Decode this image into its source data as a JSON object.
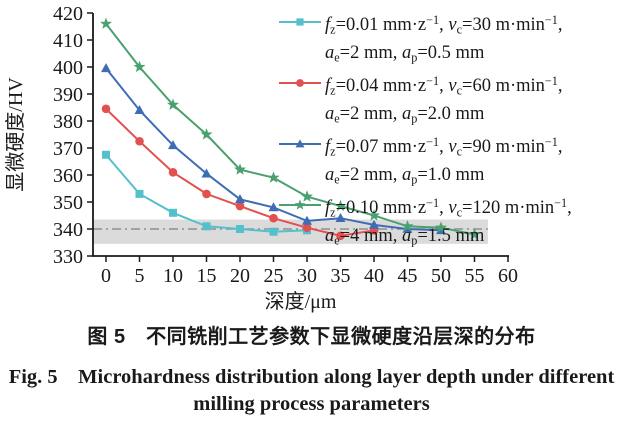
{
  "figure": {
    "caption_cn": "图 5　不同铣削工艺参数下显微硬度沿层深的分布",
    "caption_en1": "Fig. 5　Microhardness distribution along layer depth under different",
    "caption_en2": "milling process parameters"
  },
  "chart_data": {
    "type": "line",
    "title": "",
    "xlabel": "深度/μm",
    "ylabel": "显微硬度/HV",
    "xlim": [
      0,
      60
    ],
    "ylim": [
      330,
      420
    ],
    "x_ticks": [
      0,
      5,
      10,
      15,
      20,
      25,
      30,
      35,
      40,
      45,
      50,
      55,
      60
    ],
    "y_ticks": [
      330,
      340,
      350,
      360,
      370,
      380,
      390,
      400,
      410,
      420
    ],
    "grid": false,
    "legend_position": "top-right",
    "axis_color": "#1a1a1a",
    "reference_band": {
      "ymin": 334.5,
      "ymax": 343.5,
      "x_start": 0,
      "x_end": 57,
      "color": "#dbdbdb"
    },
    "reference_line": {
      "y": 340,
      "x_start": 0,
      "x_end": 57,
      "color": "#8f8f8f",
      "style": "dash-dot"
    },
    "series": [
      {
        "name": "fz=0.01 mm·z−1, vc=30 m·min−1, ae=2 mm, ap=0.5 mm",
        "marker": "square",
        "color": "#54c0cb",
        "x": [
          0,
          5,
          10,
          15,
          20,
          25,
          30
        ],
        "y": [
          367.5,
          353,
          346,
          341,
          340,
          339,
          339.5
        ]
      },
      {
        "name": "fz=0.04 mm·z−1, vc=60 m·min−1, ae=2 mm, ap=2.0 mm",
        "marker": "circle",
        "color": "#e2504f",
        "x": [
          0,
          5,
          10,
          15,
          20,
          25,
          30,
          35,
          40
        ],
        "y": [
          384.5,
          372.5,
          361,
          353,
          348.5,
          344,
          340.5,
          337.5,
          339.5
        ]
      },
      {
        "name": "fz=0.07 mm·z−1, vc=90 m·min−1, ae=2 mm, ap=1.0 mm",
        "marker": "triangle",
        "color": "#3e6db3",
        "x": [
          0,
          5,
          10,
          15,
          20,
          25,
          30,
          35,
          40,
          45,
          50
        ],
        "y": [
          399.5,
          384,
          371,
          360.5,
          351,
          348,
          343,
          344,
          341.5,
          340,
          339.5
        ]
      },
      {
        "name": "fz=0.10 mm·z−1, vc=120 m·min−1, ae=4 mm, ap=1.5 mm",
        "marker": "star",
        "color": "#4aa06e",
        "x": [
          0,
          5,
          10,
          15,
          20,
          25,
          30,
          35,
          40,
          45,
          50,
          55
        ],
        "y": [
          416,
          400,
          386,
          375,
          362,
          359,
          352,
          348.5,
          345,
          341,
          340.5,
          338
        ]
      }
    ],
    "legend": {
      "entries": [
        {
          "marker": "square",
          "color": "#54c0cb",
          "line1": [
            {
              "t": "f",
              "s": "it"
            },
            {
              "t": "z",
              "s": "sub"
            },
            {
              "t": "=0.01 mm·z",
              "s": ""
            },
            {
              "t": "−1",
              "s": "sup"
            },
            {
              "t": ", ",
              "s": ""
            },
            {
              "t": "v",
              "s": "it"
            },
            {
              "t": "c",
              "s": "sub"
            },
            {
              "t": "=30 m·min",
              "s": ""
            },
            {
              "t": "−1",
              "s": "sup"
            },
            {
              "t": ",",
              "s": ""
            }
          ],
          "line2": [
            {
              "t": "a",
              "s": "it"
            },
            {
              "t": "e",
              "s": "sub"
            },
            {
              "t": "=2 mm, ",
              "s": ""
            },
            {
              "t": "a",
              "s": "it"
            },
            {
              "t": "p",
              "s": "sub"
            },
            {
              "t": "=0.5 mm",
              "s": ""
            }
          ]
        },
        {
          "marker": "circle",
          "color": "#e2504f",
          "line1": [
            {
              "t": "f",
              "s": "it"
            },
            {
              "t": "z",
              "s": "sub"
            },
            {
              "t": "=0.04 mm·z",
              "s": ""
            },
            {
              "t": "−1",
              "s": "sup"
            },
            {
              "t": ", ",
              "s": ""
            },
            {
              "t": "v",
              "s": "it"
            },
            {
              "t": "c",
              "s": "sub"
            },
            {
              "t": "=60 m·min",
              "s": ""
            },
            {
              "t": "−1",
              "s": "sup"
            },
            {
              "t": ",",
              "s": ""
            }
          ],
          "line2": [
            {
              "t": "a",
              "s": "it"
            },
            {
              "t": "e",
              "s": "sub"
            },
            {
              "t": "=2 mm, ",
              "s": ""
            },
            {
              "t": "a",
              "s": "it"
            },
            {
              "t": "p",
              "s": "sub"
            },
            {
              "t": "=2.0 mm",
              "s": ""
            }
          ]
        },
        {
          "marker": "triangle",
          "color": "#3e6db3",
          "line1": [
            {
              "t": "f",
              "s": "it"
            },
            {
              "t": "z",
              "s": "sub"
            },
            {
              "t": "=0.07 mm·z",
              "s": ""
            },
            {
              "t": "−1",
              "s": "sup"
            },
            {
              "t": ", ",
              "s": ""
            },
            {
              "t": "v",
              "s": "it"
            },
            {
              "t": "c",
              "s": "sub"
            },
            {
              "t": "=90 m·min",
              "s": ""
            },
            {
              "t": "−1",
              "s": "sup"
            },
            {
              "t": ",",
              "s": ""
            }
          ],
          "line2": [
            {
              "t": "a",
              "s": "it"
            },
            {
              "t": "e",
              "s": "sub"
            },
            {
              "t": "=2 mm, ",
              "s": ""
            },
            {
              "t": "a",
              "s": "it"
            },
            {
              "t": "p",
              "s": "sub"
            },
            {
              "t": "=1.0 mm",
              "s": ""
            }
          ]
        },
        {
          "marker": "star",
          "color": "#4aa06e",
          "line1": [
            {
              "t": "f",
              "s": "it"
            },
            {
              "t": "z",
              "s": "sub"
            },
            {
              "t": "=0.10 mm·z",
              "s": ""
            },
            {
              "t": "−1",
              "s": "sup"
            },
            {
              "t": ", ",
              "s": ""
            },
            {
              "t": "v",
              "s": "it"
            },
            {
              "t": "c",
              "s": "sub"
            },
            {
              "t": "=120 m·min",
              "s": ""
            },
            {
              "t": "−1",
              "s": "sup"
            },
            {
              "t": ",",
              "s": ""
            }
          ],
          "line2": [
            {
              "t": "a",
              "s": "it"
            },
            {
              "t": "e",
              "s": "sub"
            },
            {
              "t": "=4 mm, ",
              "s": ""
            },
            {
              "t": "a",
              "s": "it"
            },
            {
              "t": "p",
              "s": "sub"
            },
            {
              "t": "=1.5 mm",
              "s": ""
            }
          ]
        }
      ]
    }
  }
}
